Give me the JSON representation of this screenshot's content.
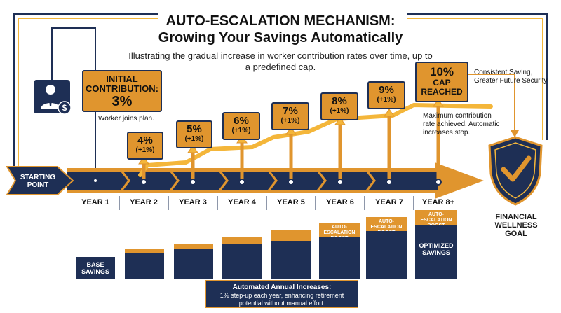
{
  "title_line1": "AUTO-ESCALATION MECHANISM:",
  "title_line2": "Growing Your Savings Automatically",
  "subtitle": "Illustrating the gradual increase in worker contribution rates over time, up to a predefined cap.",
  "initial": {
    "label": "INITIAL CONTRIBUTION:",
    "value": "3%",
    "note": "Worker joins plan."
  },
  "steps": [
    {
      "pct": "4%",
      "inc": "(+1%)"
    },
    {
      "pct": "5%",
      "inc": "(+1%)"
    },
    {
      "pct": "6%",
      "inc": "(+1%)"
    },
    {
      "pct": "7%",
      "inc": "(+1%)"
    },
    {
      "pct": "8%",
      "inc": "(+1%)"
    },
    {
      "pct": "9%",
      "inc": "(+1%)"
    }
  ],
  "cap": {
    "pct": "10%",
    "label": "CAP REACHED",
    "note": "Maximum contribution rate achieved. Automatic increases stop."
  },
  "right_note": "Consistent Saving, Greater Future Security",
  "start": "STARTING POINT",
  "years": [
    "YEAR 1",
    "YEAR 2",
    "YEAR 3",
    "YEAR 4",
    "YEAR 5",
    "YEAR 6",
    "YEAR 7",
    "YEAR 8+"
  ],
  "bars": {
    "base": "BASE SAVINGS",
    "boost": "AUTO-ESCALATION BOOST",
    "optimized": "OPTIMIZED SAVINGS"
  },
  "goal": "FINANCIAL WELLNESS GOAL",
  "footer": {
    "title": "Automated Annual Increases:",
    "text": "1% step-up each year, enhancing retirement potential without manual effort."
  },
  "colors": {
    "navy": "#1e2f55",
    "orange": "#E0952E",
    "gold": "#F4B63A"
  },
  "icons": [
    "worker-icon",
    "dollar-icon",
    "shield-check-icon"
  ]
}
